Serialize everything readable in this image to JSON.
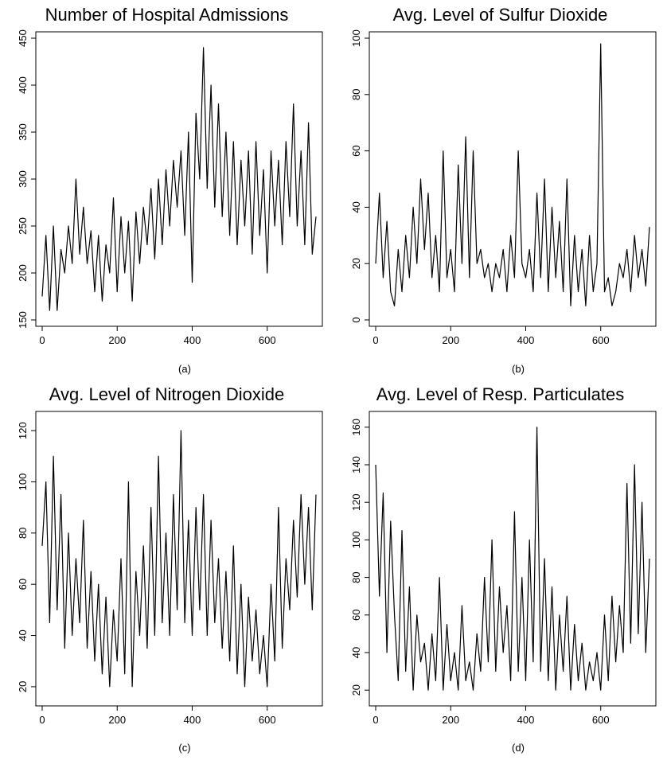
{
  "chart_data": [
    {
      "type": "line",
      "title": "Number of Hospital Admissions",
      "xlabel": "",
      "ylabel": "",
      "panel_label": "(a)",
      "xlim": [
        0,
        730
      ],
      "ylim": [
        150,
        450
      ],
      "xticks": [
        0,
        200,
        400,
        600
      ],
      "yticks": [
        150,
        200,
        250,
        300,
        350,
        400,
        450
      ],
      "grid": false,
      "series": [
        {
          "x": [
            0,
            10,
            20,
            30,
            40,
            50,
            60,
            70,
            80,
            90,
            100,
            110,
            120,
            130,
            140,
            150,
            160,
            170,
            180,
            190,
            200,
            210,
            220,
            230,
            240,
            250,
            260,
            270,
            280,
            290,
            300,
            310,
            320,
            330,
            340,
            350,
            360,
            370,
            380,
            390,
            400,
            410,
            420,
            430,
            440,
            450,
            460,
            470,
            480,
            490,
            500,
            510,
            520,
            530,
            540,
            550,
            560,
            570,
            580,
            590,
            600,
            610,
            620,
            630,
            640,
            650,
            660,
            670,
            680,
            690,
            700,
            710,
            720,
            730
          ],
          "y": [
            175,
            240,
            160,
            250,
            160,
            225,
            200,
            250,
            210,
            300,
            220,
            270,
            210,
            245,
            180,
            240,
            170,
            230,
            200,
            280,
            180,
            260,
            200,
            255,
            170,
            265,
            210,
            270,
            230,
            290,
            215,
            300,
            230,
            310,
            250,
            320,
            270,
            330,
            240,
            350,
            190,
            370,
            300,
            440,
            290,
            400,
            270,
            380,
            260,
            350,
            240,
            340,
            230,
            320,
            250,
            330,
            220,
            340,
            240,
            310,
            200,
            330,
            250,
            320,
            230,
            340,
            260,
            380,
            250,
            330,
            230,
            360,
            220,
            260
          ]
        }
      ]
    },
    {
      "type": "line",
      "title": "Avg. Level of Sulfur Dioxide",
      "xlabel": "",
      "ylabel": "",
      "panel_label": "(b)",
      "xlim": [
        0,
        730
      ],
      "ylim": [
        0,
        100
      ],
      "xticks": [
        0,
        200,
        400,
        600
      ],
      "yticks": [
        0,
        20,
        40,
        60,
        80,
        100
      ],
      "grid": false,
      "series": [
        {
          "x": [
            0,
            10,
            20,
            30,
            40,
            50,
            60,
            70,
            80,
            90,
            100,
            110,
            120,
            130,
            140,
            150,
            160,
            170,
            180,
            190,
            200,
            210,
            220,
            230,
            240,
            250,
            260,
            270,
            280,
            290,
            300,
            310,
            320,
            330,
            340,
            350,
            360,
            370,
            380,
            390,
            400,
            410,
            420,
            430,
            440,
            450,
            460,
            470,
            480,
            490,
            500,
            510,
            520,
            530,
            540,
            550,
            560,
            570,
            580,
            590,
            600,
            610,
            620,
            630,
            640,
            650,
            660,
            670,
            680,
            690,
            700,
            710,
            720,
            730
          ],
          "y": [
            20,
            45,
            15,
            35,
            10,
            5,
            25,
            10,
            30,
            15,
            40,
            20,
            50,
            25,
            45,
            15,
            30,
            10,
            60,
            15,
            25,
            10,
            55,
            20,
            65,
            15,
            60,
            20,
            25,
            15,
            20,
            10,
            20,
            15,
            25,
            10,
            30,
            15,
            60,
            20,
            15,
            25,
            10,
            45,
            15,
            50,
            10,
            40,
            15,
            35,
            10,
            50,
            5,
            30,
            10,
            25,
            5,
            30,
            10,
            20,
            98,
            10,
            15,
            5,
            10,
            20,
            15,
            25,
            10,
            30,
            15,
            25,
            12,
            33
          ]
        }
      ]
    },
    {
      "type": "line",
      "title": "Avg. Level of Nitrogen Dioxide",
      "xlabel": "",
      "ylabel": "",
      "panel_label": "(c)",
      "xlim": [
        0,
        730
      ],
      "ylim": [
        15,
        125
      ],
      "xticks": [
        0,
        200,
        400,
        600
      ],
      "yticks": [
        20,
        40,
        60,
        80,
        100,
        120
      ],
      "grid": false,
      "series": [
        {
          "x": [
            0,
            10,
            20,
            30,
            40,
            50,
            60,
            70,
            80,
            90,
            100,
            110,
            120,
            130,
            140,
            150,
            160,
            170,
            180,
            190,
            200,
            210,
            220,
            230,
            240,
            250,
            260,
            270,
            280,
            290,
            300,
            310,
            320,
            330,
            340,
            350,
            360,
            370,
            380,
            390,
            400,
            410,
            420,
            430,
            440,
            450,
            460,
            470,
            480,
            490,
            500,
            510,
            520,
            530,
            540,
            550,
            560,
            570,
            580,
            590,
            600,
            610,
            620,
            630,
            640,
            650,
            660,
            670,
            680,
            690,
            700,
            710,
            720,
            730
          ],
          "y": [
            75,
            100,
            45,
            110,
            50,
            95,
            35,
            80,
            40,
            70,
            45,
            85,
            35,
            65,
            30,
            60,
            25,
            55,
            20,
            50,
            30,
            70,
            25,
            100,
            20,
            65,
            40,
            75,
            35,
            90,
            40,
            110,
            45,
            80,
            40,
            95,
            50,
            120,
            45,
            85,
            40,
            90,
            50,
            95,
            40,
            85,
            45,
            70,
            35,
            65,
            30,
            75,
            25,
            60,
            20,
            55,
            30,
            50,
            25,
            40,
            20,
            60,
            30,
            90,
            35,
            70,
            50,
            85,
            55,
            95,
            60,
            90,
            50,
            95
          ]
        }
      ]
    },
    {
      "type": "line",
      "title": "Avg. Level of Resp. Particulates",
      "xlabel": "",
      "ylabel": "",
      "panel_label": "(d)",
      "xlim": [
        0,
        730
      ],
      "ylim": [
        15,
        165
      ],
      "xticks": [
        0,
        200,
        400,
        600
      ],
      "yticks": [
        20,
        40,
        60,
        80,
        100,
        120,
        140,
        160
      ],
      "grid": false,
      "series": [
        {
          "x": [
            0,
            10,
            20,
            30,
            40,
            50,
            60,
            70,
            80,
            90,
            100,
            110,
            120,
            130,
            140,
            150,
            160,
            170,
            180,
            190,
            200,
            210,
            220,
            230,
            240,
            250,
            260,
            270,
            280,
            290,
            300,
            310,
            320,
            330,
            340,
            350,
            360,
            370,
            380,
            390,
            400,
            410,
            420,
            430,
            440,
            450,
            460,
            470,
            480,
            490,
            500,
            510,
            520,
            530,
            540,
            550,
            560,
            570,
            580,
            590,
            600,
            610,
            620,
            630,
            640,
            650,
            660,
            670,
            680,
            690,
            700,
            710,
            720,
            730
          ],
          "y": [
            140,
            70,
            125,
            40,
            110,
            60,
            25,
            105,
            30,
            75,
            20,
            60,
            35,
            45,
            20,
            50,
            25,
            80,
            20,
            55,
            25,
            40,
            20,
            65,
            25,
            35,
            20,
            50,
            30,
            80,
            35,
            100,
            30,
            75,
            40,
            65,
            25,
            115,
            30,
            80,
            25,
            100,
            35,
            160,
            30,
            90,
            25,
            75,
            20,
            60,
            30,
            70,
            20,
            55,
            25,
            45,
            20,
            35,
            25,
            40,
            20,
            60,
            25,
            70,
            35,
            65,
            40,
            130,
            45,
            140,
            50,
            120,
            40,
            90
          ]
        }
      ]
    }
  ]
}
